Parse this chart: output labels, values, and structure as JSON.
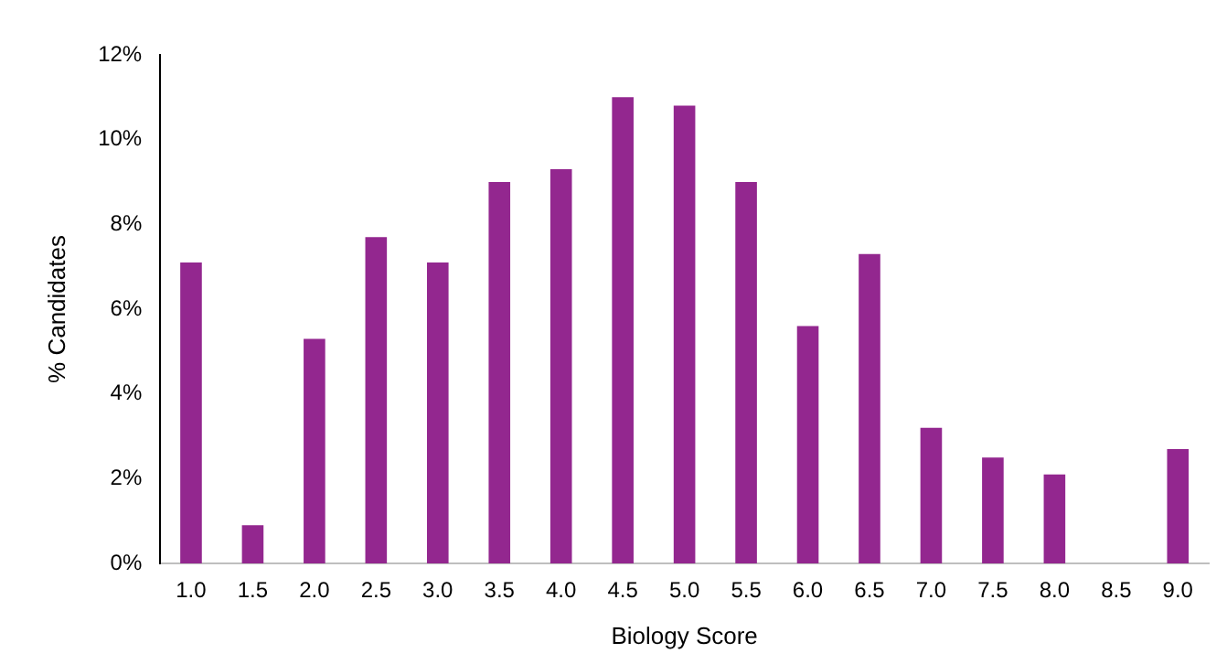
{
  "chart_data": {
    "type": "bar",
    "xlabel": "Biology Score",
    "ylabel": "% Candidates",
    "categories": [
      "1.0",
      "1.5",
      "2.0",
      "2.5",
      "3.0",
      "3.5",
      "4.0",
      "4.5",
      "5.0",
      "5.5",
      "6.0",
      "6.5",
      "7.0",
      "7.5",
      "8.0",
      "8.5",
      "9.0"
    ],
    "values": [
      7.1,
      0.9,
      5.3,
      7.7,
      7.1,
      9.0,
      9.3,
      11.0,
      10.8,
      9.0,
      5.6,
      7.3,
      3.2,
      2.5,
      2.1,
      0,
      2.7
    ],
    "color": "#93278f",
    "ylim": [
      0,
      12
    ],
    "yticks": [
      {
        "value": 0,
        "label": "0%"
      },
      {
        "value": 2,
        "label": "2%"
      },
      {
        "value": 4,
        "label": "4%"
      },
      {
        "value": 6,
        "label": "6%"
      },
      {
        "value": 8,
        "label": "8%"
      },
      {
        "value": 10,
        "label": "10%"
      },
      {
        "value": 12,
        "label": "12%"
      }
    ],
    "grid": false,
    "legend": false
  }
}
